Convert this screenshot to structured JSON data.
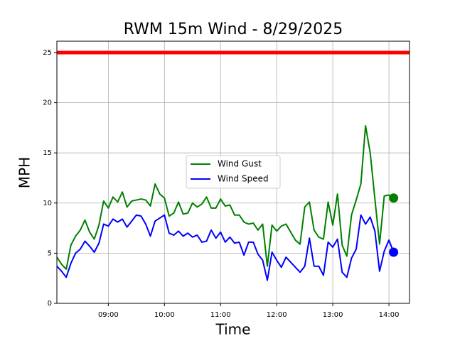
{
  "chart_data": {
    "type": "line",
    "title": "RWM 15m Wind - 8/29/2025",
    "x_label": "Time",
    "y_label": "MPH",
    "x": [
      "08:05",
      "08:10",
      "08:15",
      "08:20",
      "08:25",
      "08:30",
      "08:35",
      "08:40",
      "08:45",
      "08:50",
      "08:55",
      "09:00",
      "09:05",
      "09:10",
      "09:15",
      "09:20",
      "09:25",
      "09:30",
      "09:35",
      "09:40",
      "09:45",
      "09:50",
      "09:55",
      "10:00",
      "10:05",
      "10:10",
      "10:15",
      "10:20",
      "10:25",
      "10:30",
      "10:35",
      "10:40",
      "10:45",
      "10:50",
      "10:55",
      "11:00",
      "11:05",
      "11:10",
      "11:15",
      "11:20",
      "11:25",
      "11:30",
      "11:35",
      "11:40",
      "11:45",
      "11:50",
      "11:55",
      "12:00",
      "12:05",
      "12:10",
      "12:15",
      "12:20",
      "12:25",
      "12:30",
      "12:35",
      "12:40",
      "12:45",
      "12:50",
      "12:55",
      "13:00",
      "13:05",
      "13:10",
      "13:15",
      "13:20",
      "13:25",
      "13:30",
      "13:35",
      "13:40",
      "13:45",
      "13:50",
      "13:55",
      "14:00",
      "14:05"
    ],
    "series": [
      {
        "name": "Wind Gust",
        "color": "green",
        "values": [
          4.6,
          3.9,
          3.4,
          5.8,
          6.7,
          7.3,
          8.3,
          7.1,
          6.4,
          7.8,
          10.2,
          9.5,
          10.6,
          10.1,
          11.1,
          9.6,
          10.2,
          10.3,
          10.4,
          10.3,
          9.7,
          11.9,
          10.9,
          10.5,
          8.7,
          9.0,
          10.1,
          8.9,
          9.0,
          10.0,
          9.6,
          9.9,
          10.6,
          9.5,
          9.5,
          10.4,
          9.7,
          9.8,
          8.8,
          8.8,
          8.1,
          7.9,
          8.0,
          7.3,
          7.9,
          3.7,
          7.8,
          7.2,
          7.7,
          7.9,
          7.1,
          6.3,
          5.9,
          9.6,
          10.1,
          7.3,
          6.6,
          6.4,
          10.1,
          7.8,
          10.9,
          5.8,
          4.7,
          8.8,
          10.3,
          11.9,
          17.7,
          15.0,
          10.4,
          5.9,
          10.7,
          10.8,
          10.5
        ]
      },
      {
        "name": "Wind Speed",
        "color": "blue",
        "values": [
          3.7,
          3.2,
          2.6,
          4.0,
          5.0,
          5.4,
          6.2,
          5.7,
          5.1,
          6.0,
          7.9,
          7.7,
          8.4,
          8.1,
          8.4,
          7.6,
          8.2,
          8.8,
          8.7,
          7.9,
          6.7,
          8.2,
          8.5,
          8.8,
          7.0,
          6.8,
          7.2,
          6.7,
          7.0,
          6.6,
          6.8,
          6.1,
          6.2,
          7.3,
          6.5,
          7.1,
          6.1,
          6.6,
          6.0,
          6.1,
          4.8,
          6.1,
          6.1,
          4.9,
          4.3,
          2.3,
          5.1,
          4.3,
          3.6,
          4.6,
          4.1,
          3.6,
          3.1,
          3.7,
          6.5,
          3.7,
          3.7,
          2.8,
          6.1,
          5.6,
          6.4,
          3.1,
          2.6,
          4.5,
          5.4,
          8.8,
          7.9,
          8.6,
          7.2,
          3.2,
          5.2,
          6.3,
          5.1
        ]
      }
    ],
    "threshold": 25,
    "threshold_color": "red",
    "xlim": [
      "08:05",
      "14:22"
    ],
    "xticks": [
      "09:00",
      "10:00",
      "11:00",
      "12:00",
      "13:00",
      "14:00"
    ],
    "ylim": [
      0,
      26.13
    ],
    "yticks": [
      0,
      5,
      10,
      15,
      20,
      25
    ],
    "grid": true,
    "legend": "center"
  }
}
